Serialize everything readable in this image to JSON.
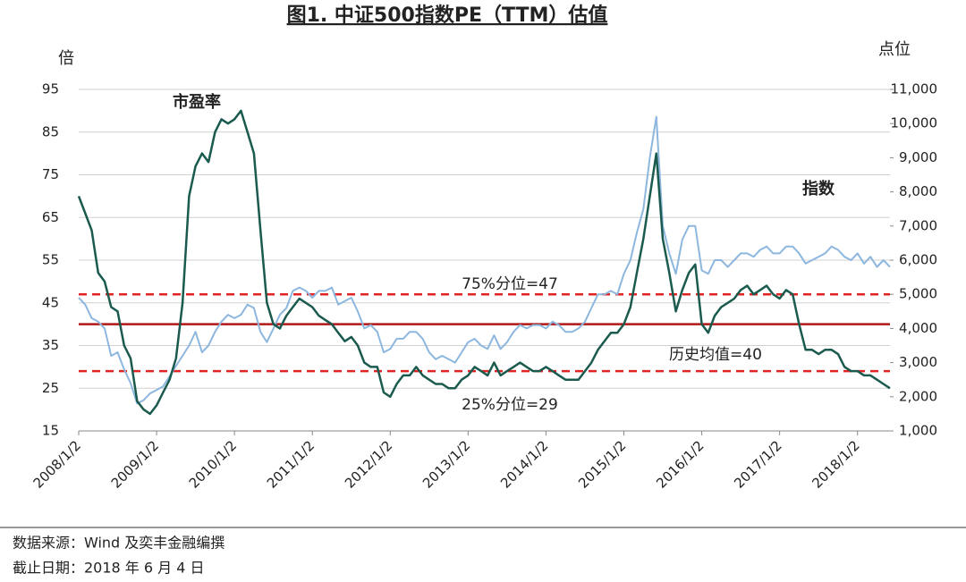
{
  "chart_data": {
    "type": "line",
    "title": "图1. 中证500指数PE（TTM）估值",
    "y_label": "倍",
    "y2_label": "点位",
    "source": "数据来源：Wind 及奕丰金融编撰",
    "date_note": "截止日期：2018 年 6 月 4 日",
    "categories": [
      "2008/1/2",
      null,
      null,
      null,
      null,
      null,
      null,
      null,
      null,
      null,
      null,
      null,
      "2009/1/2",
      null,
      null,
      null,
      null,
      null,
      null,
      null,
      null,
      null,
      null,
      null,
      "2010/1/2",
      null,
      null,
      null,
      null,
      null,
      null,
      null,
      null,
      null,
      null,
      null,
      "2011/1/2",
      null,
      null,
      null,
      null,
      null,
      null,
      null,
      null,
      null,
      null,
      null,
      "2012/1/2",
      null,
      null,
      null,
      null,
      null,
      null,
      null,
      null,
      null,
      null,
      null,
      "2013/1/2",
      null,
      null,
      null,
      null,
      null,
      null,
      null,
      null,
      null,
      null,
      null,
      "2014/1/2",
      null,
      null,
      null,
      null,
      null,
      null,
      null,
      null,
      null,
      null,
      null,
      "2015/1/2",
      null,
      null,
      null,
      null,
      null,
      null,
      null,
      null,
      null,
      null,
      null,
      "2016/1/2",
      null,
      null,
      null,
      null,
      null,
      null,
      null,
      null,
      null,
      null,
      null,
      "2017/1/2",
      null,
      null,
      null,
      null,
      null,
      null,
      null,
      null,
      null,
      null,
      null,
      "2018/1/2",
      null,
      null,
      null,
      null,
      null
    ],
    "series": [
      {
        "name": "指数",
        "color": "#8db7de",
        "axis": "y2",
        "values": [
          4900,
          4700,
          4300,
          4200,
          4000,
          3200,
          3300,
          2800,
          2400,
          1800,
          1900,
          2100,
          2200,
          2300,
          2600,
          2900,
          3200,
          3500,
          3900,
          3300,
          3500,
          3900,
          4200,
          4400,
          4300,
          4400,
          4700,
          4600,
          3900,
          3600,
          4000,
          4400,
          4600,
          5100,
          5200,
          5100,
          4900,
          5100,
          5100,
          5200,
          4700,
          4800,
          4900,
          4500,
          4000,
          4100,
          3900,
          3300,
          3400,
          3700,
          3700,
          3900,
          3900,
          3700,
          3300,
          3100,
          3200,
          3100,
          3000,
          3300,
          3600,
          3700,
          3500,
          3400,
          3800,
          3400,
          3600,
          3900,
          4100,
          4000,
          4100,
          4100,
          4000,
          4200,
          4100,
          3900,
          3900,
          4000,
          4200,
          4600,
          5000,
          5000,
          5100,
          5000,
          5600,
          6000,
          6800,
          7500,
          9000,
          10200,
          7000,
          6200,
          5600,
          6600,
          7000,
          7000,
          5700,
          5600,
          6000,
          6000,
          5800,
          6000,
          6200,
          6200,
          6100,
          6300,
          6400,
          6200,
          6200,
          6400,
          6400,
          6200,
          5900,
          6000,
          6100,
          6200,
          6400,
          6300,
          6100,
          6000,
          6200,
          5900,
          6100,
          5800,
          6000,
          5800
        ]
      },
      {
        "name": "市盈率",
        "color": "#1b5a4e",
        "values": [
          70,
          66,
          62,
          52,
          50,
          44,
          43,
          35,
          32,
          22,
          20,
          19,
          21,
          24,
          27,
          32,
          45,
          70,
          77,
          80,
          78,
          85,
          88,
          87,
          88,
          90,
          85,
          80,
          62,
          45,
          40,
          39,
          42,
          44,
          46,
          45,
          44,
          42,
          41,
          40,
          38,
          36,
          37,
          35,
          31,
          30,
          30,
          24,
          23,
          26,
          28,
          28,
          30,
          28,
          27,
          26,
          26,
          25,
          25,
          27,
          28,
          30,
          29,
          28,
          31,
          28,
          29,
          30,
          31,
          30,
          29,
          29,
          30,
          29,
          28,
          27,
          27,
          27,
          29,
          31,
          34,
          36,
          38,
          38,
          40,
          44,
          52,
          60,
          70,
          80,
          60,
          52,
          43,
          48,
          52,
          54,
          40,
          38,
          42,
          44,
          45,
          46,
          48,
          49,
          47,
          48,
          49,
          47,
          46,
          48,
          47,
          40,
          34,
          34,
          33,
          34,
          34,
          33,
          30,
          29,
          29,
          28,
          28,
          27,
          26,
          25
        ]
      }
    ],
    "reference_lines": [
      {
        "value": 47,
        "label": "75%分位=47",
        "color": "#e02424",
        "style": "dashed"
      },
      {
        "value": 40,
        "label": "历史均值=40",
        "color": "#b01818",
        "style": "solid"
      },
      {
        "value": 29,
        "label": "25%分位=29",
        "color": "#e02424",
        "style": "dashed"
      }
    ],
    "ylim": [
      15,
      95
    ],
    "yticks": [
      15,
      25,
      35,
      45,
      55,
      65,
      75,
      85,
      95
    ],
    "y2lim": [
      1000,
      11000
    ],
    "y2ticks": [
      {
        "value": 1000,
        "label": "1,000"
      },
      {
        "value": 2000,
        "label": "2,000"
      },
      {
        "value": 3000,
        "label": "3,000"
      },
      {
        "value": 4000,
        "label": "4,000"
      },
      {
        "value": 5000,
        "label": "5,000"
      },
      {
        "value": 6000,
        "label": "6,000"
      },
      {
        "value": 7000,
        "label": "7,000"
      },
      {
        "value": 8000,
        "label": "8,000"
      },
      {
        "value": 9000,
        "label": "9,000"
      },
      {
        "value": 10000,
        "label": "10,000"
      },
      {
        "value": 11000,
        "label": "11,000"
      }
    ],
    "grid": true
  }
}
